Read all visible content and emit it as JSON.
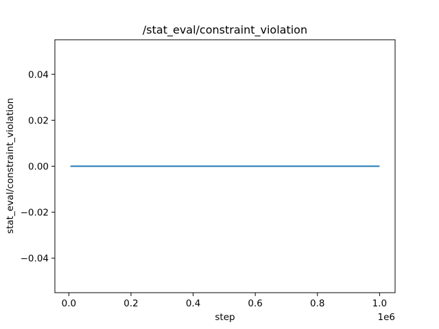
{
  "chart_data": {
    "type": "line",
    "title": "/stat_eval/constraint_violation",
    "xlabel": "step",
    "ylabel": "stat_eval/constraint_violation",
    "x_offset_label": "1e6",
    "xlim": [
      -0.045,
      1.05
    ],
    "ylim": [
      -0.055,
      0.055
    ],
    "x_ticks": [
      0.0,
      0.2,
      0.4,
      0.6,
      0.8,
      1.0
    ],
    "x_tick_labels": [
      "0.0",
      "0.2",
      "0.4",
      "0.6",
      "0.8",
      "1.0"
    ],
    "y_ticks": [
      -0.04,
      -0.02,
      0.0,
      0.02,
      0.04
    ],
    "y_tick_labels": [
      "−0.04",
      "−0.02",
      "0.00",
      "0.02",
      "0.04"
    ],
    "grid": false,
    "series": [
      {
        "color": "#1f77b4",
        "x": [
          0.005,
          1.0
        ],
        "y": [
          0.0,
          0.0
        ]
      }
    ]
  }
}
